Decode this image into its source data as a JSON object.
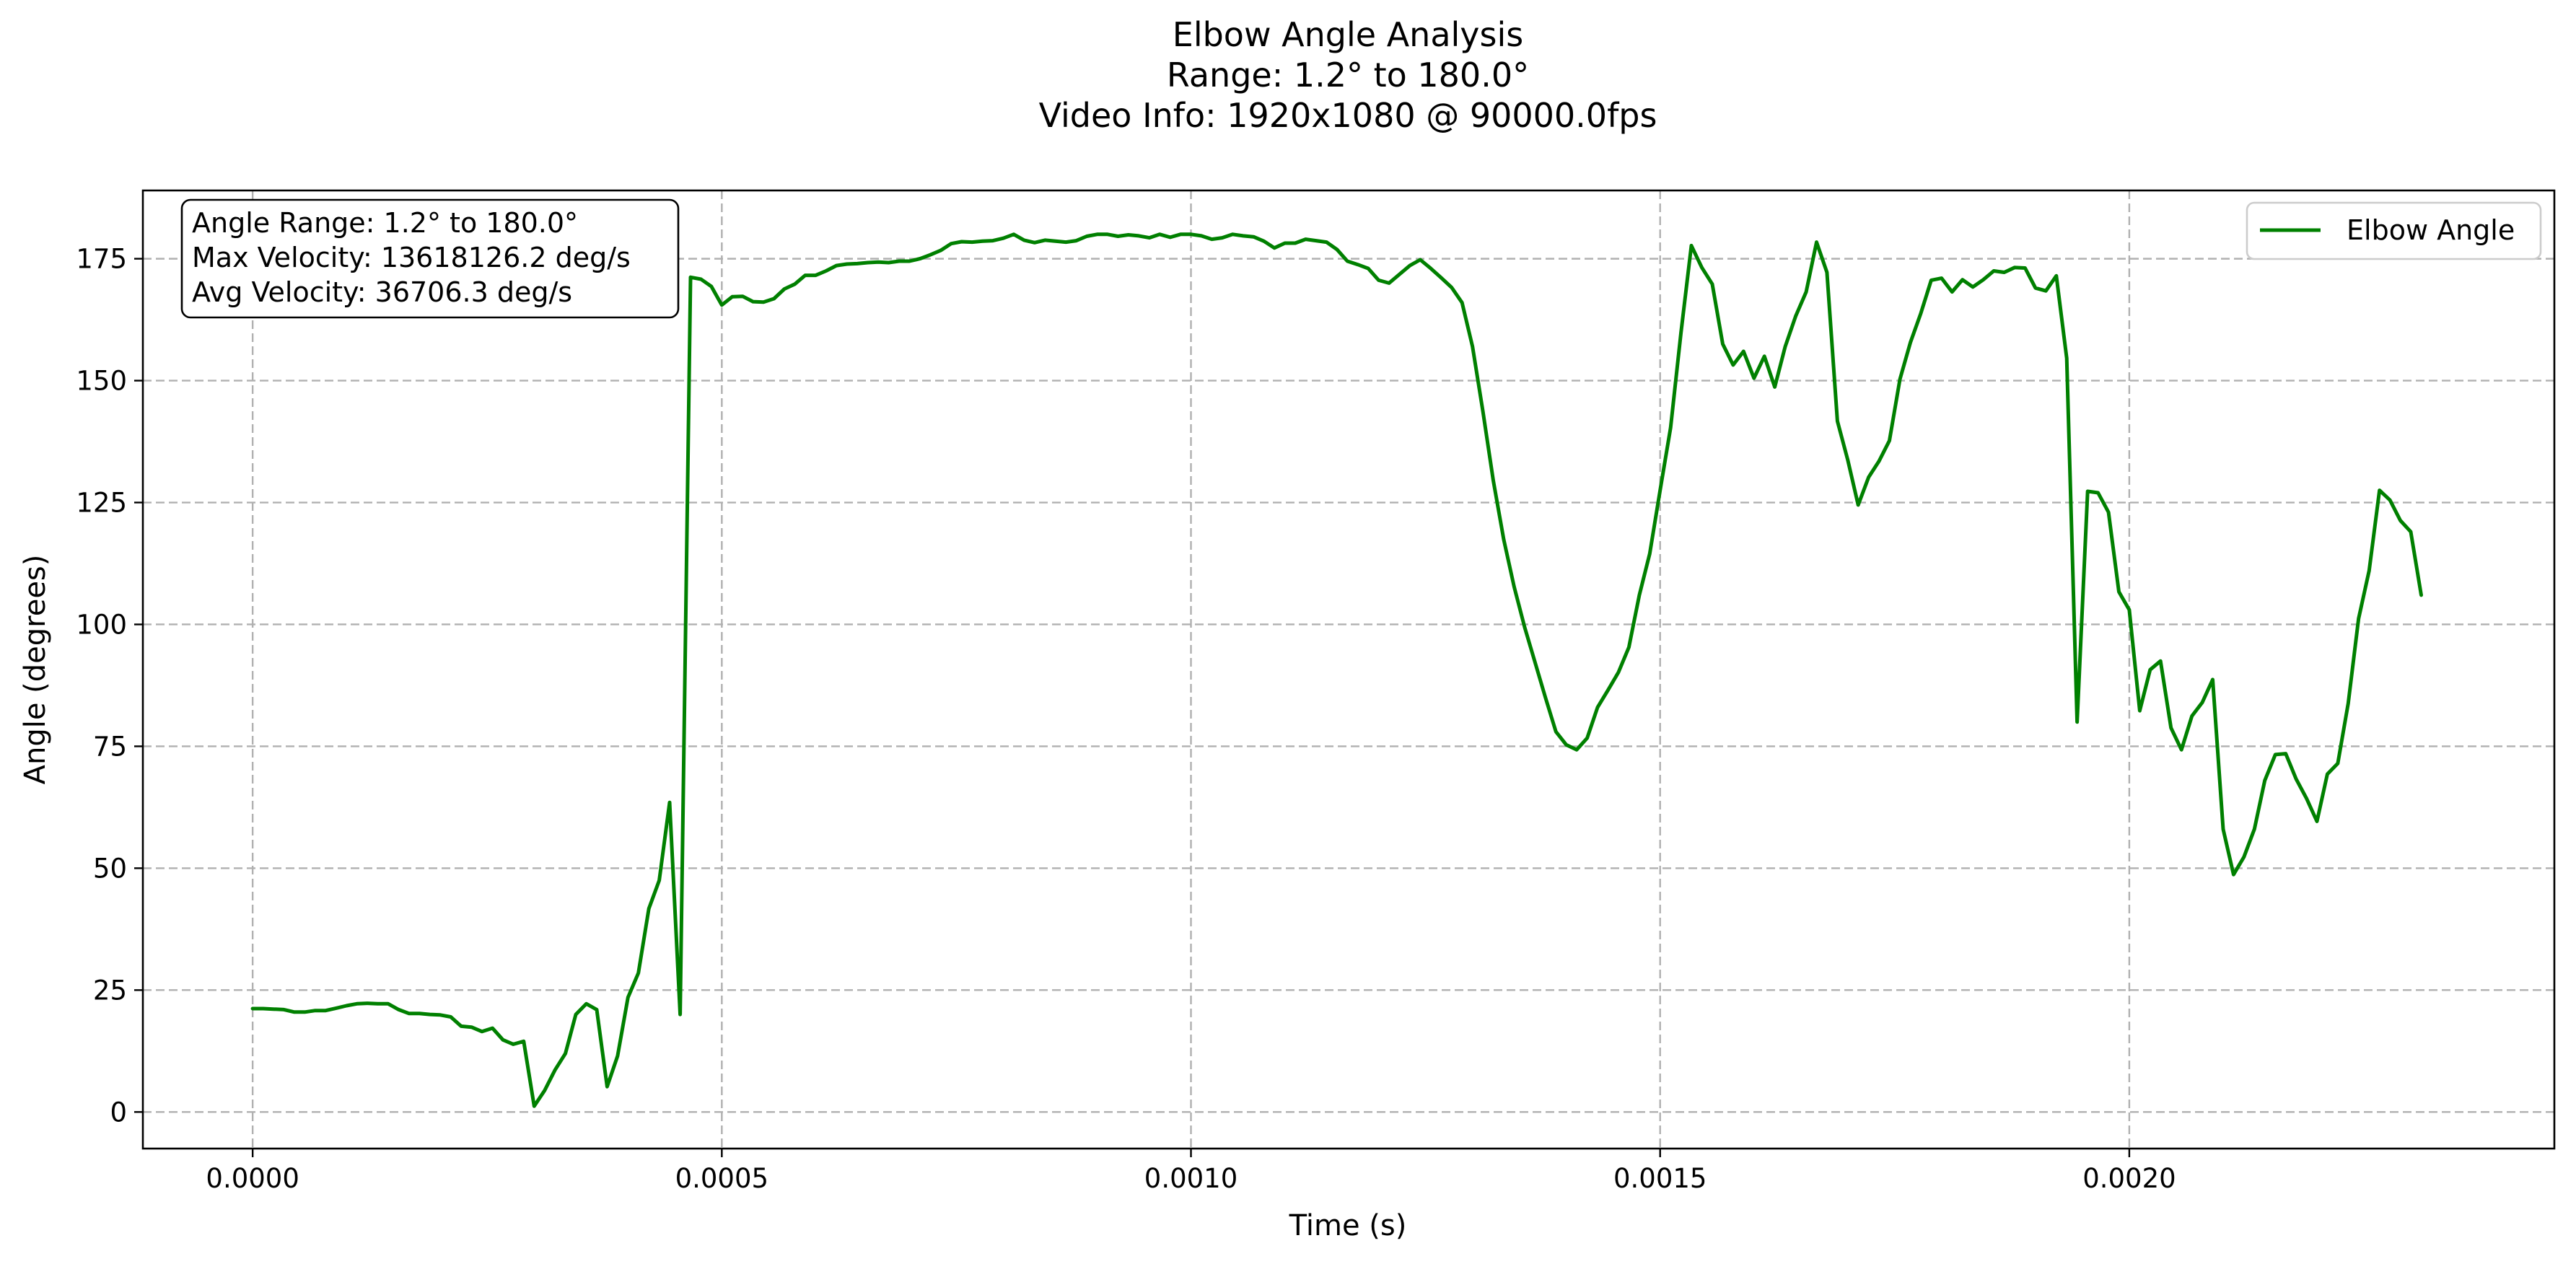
{
  "chart_data": {
    "type": "line",
    "title_lines": [
      "Elbow Angle Analysis",
      "Range: 1.2° to 180.0°",
      "Video Info: 1920x1080 @ 90000.0fps"
    ],
    "xlabel": "Time (s)",
    "ylabel": "Angle (degrees)",
    "xlim": [
      -0.000117,
      0.002453
    ],
    "ylim": [
      -7.5,
      189
    ],
    "x_ticks": [
      0.0,
      0.0005,
      0.001,
      0.0015,
      0.002
    ],
    "x_tick_labels": [
      "0.0000",
      "0.0005",
      "0.0010",
      "0.0015",
      "0.0020"
    ],
    "y_ticks": [
      0,
      25,
      50,
      75,
      100,
      125,
      150,
      175
    ],
    "y_tick_labels": [
      "0",
      "25",
      "50",
      "75",
      "100",
      "125",
      "150",
      "175"
    ],
    "grid": true,
    "legend_position": "top-right",
    "stats_box": {
      "position": "top-left",
      "lines": [
        "Angle Range: 1.2° to 180.0°",
        "Max Velocity: 13618126.2 deg/s",
        "Avg Velocity: 36706.3 deg/s"
      ]
    },
    "series": [
      {
        "name": "Elbow Angle",
        "color": "#008000",
        "points": [
          [
            0.0,
            21.2
          ],
          [
            1.11e-05,
            21.2
          ],
          [
            2.22e-05,
            21.1
          ],
          [
            3.33e-05,
            21.0
          ],
          [
            4.44e-05,
            20.5
          ],
          [
            5.56e-05,
            20.5
          ],
          [
            6.67e-05,
            20.8
          ],
          [
            7.78e-05,
            20.8
          ],
          [
            8.89e-05,
            21.3
          ],
          [
            0.0001,
            21.8
          ],
          [
            0.0001111,
            22.2
          ],
          [
            0.0001222,
            22.3
          ],
          [
            0.0001333,
            22.2
          ],
          [
            0.0001444,
            22.2
          ],
          [
            0.0001556,
            21.0
          ],
          [
            0.0001667,
            20.2
          ],
          [
            0.0001778,
            20.2
          ],
          [
            0.0001889,
            20.0
          ],
          [
            0.0002,
            19.9
          ],
          [
            0.0002111,
            19.5
          ],
          [
            0.0002222,
            17.6
          ],
          [
            0.0002333,
            17.4
          ],
          [
            0.0002444,
            16.5
          ],
          [
            0.0002556,
            17.2
          ],
          [
            0.0002667,
            14.8
          ],
          [
            0.0002778,
            13.9
          ],
          [
            0.0002889,
            14.5
          ],
          [
            0.0003,
            1.2
          ],
          [
            0.0003111,
            4.4
          ],
          [
            0.0003222,
            8.6
          ],
          [
            0.0003333,
            12.0
          ],
          [
            0.0003444,
            20.0
          ],
          [
            0.0003556,
            22.2
          ],
          [
            0.0003667,
            21.0
          ],
          [
            0.0003778,
            5.2
          ],
          [
            0.0003889,
            11.5
          ],
          [
            0.0004,
            23.5
          ],
          [
            0.0004111,
            28.5
          ],
          [
            0.0004222,
            41.7
          ],
          [
            0.0004333,
            47.5
          ],
          [
            0.0004444,
            63.5
          ],
          [
            0.0004556,
            20.0
          ],
          [
            0.0004667,
            171.2
          ],
          [
            0.0004778,
            170.8
          ],
          [
            0.0004889,
            169.3
          ],
          [
            0.0005,
            165.5
          ],
          [
            0.0005111,
            167.2
          ],
          [
            0.0005222,
            167.3
          ],
          [
            0.0005333,
            166.2
          ],
          [
            0.0005444,
            166.1
          ],
          [
            0.0005556,
            166.8
          ],
          [
            0.0005667,
            168.8
          ],
          [
            0.0005778,
            169.8
          ],
          [
            0.0005889,
            171.6
          ],
          [
            0.0006,
            171.6
          ],
          [
            0.0006111,
            172.5
          ],
          [
            0.0006222,
            173.6
          ],
          [
            0.0006333,
            173.9
          ],
          [
            0.0006444,
            174.0
          ],
          [
            0.0006556,
            174.2
          ],
          [
            0.0006667,
            174.3
          ],
          [
            0.0006778,
            174.2
          ],
          [
            0.0006889,
            174.5
          ],
          [
            0.0007,
            174.5
          ],
          [
            0.0007111,
            175.0
          ],
          [
            0.0007222,
            175.8
          ],
          [
            0.0007333,
            176.7
          ],
          [
            0.0007444,
            178.1
          ],
          [
            0.0007556,
            178.5
          ],
          [
            0.0007667,
            178.4
          ],
          [
            0.0007778,
            178.6
          ],
          [
            0.0007889,
            178.7
          ],
          [
            0.0008,
            179.2
          ],
          [
            0.0008111,
            180.0
          ],
          [
            0.0008222,
            178.8
          ],
          [
            0.0008333,
            178.3
          ],
          [
            0.0008444,
            178.8
          ],
          [
            0.0008556,
            178.6
          ],
          [
            0.0008667,
            178.4
          ],
          [
            0.0008778,
            178.7
          ],
          [
            0.0008889,
            179.6
          ],
          [
            0.0009,
            180.0
          ],
          [
            0.0009111,
            180.0
          ],
          [
            0.0009222,
            179.6
          ],
          [
            0.0009333,
            179.9
          ],
          [
            0.0009444,
            179.7
          ],
          [
            0.0009556,
            179.3
          ],
          [
            0.0009667,
            180.0
          ],
          [
            0.0009778,
            179.4
          ],
          [
            0.0009889,
            180.0
          ],
          [
            0.001,
            180.0
          ],
          [
            0.0010111,
            179.7
          ],
          [
            0.0010222,
            179.0
          ],
          [
            0.0010333,
            179.3
          ],
          [
            0.0010444,
            180.0
          ],
          [
            0.0010556,
            179.7
          ],
          [
            0.0010667,
            179.5
          ],
          [
            0.0010778,
            178.6
          ],
          [
            0.0010889,
            177.2
          ],
          [
            0.0011,
            178.2
          ],
          [
            0.0011111,
            178.2
          ],
          [
            0.0011222,
            179.0
          ],
          [
            0.0011333,
            178.7
          ],
          [
            0.0011444,
            178.4
          ],
          [
            0.0011556,
            176.9
          ],
          [
            0.0011667,
            174.5
          ],
          [
            0.0011778,
            173.8
          ],
          [
            0.0011889,
            173.0
          ],
          [
            0.0012,
            170.6
          ],
          [
            0.0012111,
            170.0
          ],
          [
            0.0012222,
            171.8
          ],
          [
            0.0012333,
            173.6
          ],
          [
            0.0012444,
            174.8
          ],
          [
            0.0012556,
            173.0
          ],
          [
            0.0012667,
            171.1
          ],
          [
            0.0012778,
            169.1
          ],
          [
            0.0012889,
            166.0
          ],
          [
            0.0013,
            157.0
          ],
          [
            0.0013111,
            143.7
          ],
          [
            0.0013222,
            129.5
          ],
          [
            0.0013333,
            117.4
          ],
          [
            0.0013444,
            107.7
          ],
          [
            0.0013556,
            99.4
          ],
          [
            0.0013667,
            92.2
          ],
          [
            0.0013778,
            85.0
          ],
          [
            0.0013889,
            78.0
          ],
          [
            0.0014,
            75.3
          ],
          [
            0.0014111,
            74.3
          ],
          [
            0.0014222,
            76.7
          ],
          [
            0.0014333,
            83.0
          ],
          [
            0.0014444,
            86.5
          ],
          [
            0.0014556,
            90.2
          ],
          [
            0.0014667,
            95.3
          ],
          [
            0.0014778,
            106.0
          ],
          [
            0.0014889,
            114.5
          ],
          [
            0.0015,
            127.5
          ],
          [
            0.0015111,
            140.3
          ],
          [
            0.0015222,
            159.8
          ],
          [
            0.0015333,
            177.7
          ],
          [
            0.0015444,
            173.2
          ],
          [
            0.0015556,
            169.8
          ],
          [
            0.0015667,
            157.5
          ],
          [
            0.0015778,
            153.2
          ],
          [
            0.0015889,
            156.0
          ],
          [
            0.0016,
            150.5
          ],
          [
            0.0016111,
            155.0
          ],
          [
            0.0016222,
            148.7
          ],
          [
            0.0016333,
            157.0
          ],
          [
            0.0016444,
            163.2
          ],
          [
            0.0016556,
            168.2
          ],
          [
            0.0016667,
            178.4
          ],
          [
            0.0016778,
            172.2
          ],
          [
            0.0016889,
            141.7
          ],
          [
            0.0017,
            133.7
          ],
          [
            0.0017111,
            124.5
          ],
          [
            0.0017222,
            130.2
          ],
          [
            0.0017333,
            133.5
          ],
          [
            0.0017444,
            137.7
          ],
          [
            0.0017556,
            150.3
          ],
          [
            0.0017667,
            157.8
          ],
          [
            0.0017778,
            163.8
          ],
          [
            0.0017889,
            170.6
          ],
          [
            0.0018,
            171.0
          ],
          [
            0.0018111,
            168.2
          ],
          [
            0.0018222,
            170.7
          ],
          [
            0.0018333,
            169.2
          ],
          [
            0.0018444,
            170.7
          ],
          [
            0.0018556,
            172.5
          ],
          [
            0.0018667,
            172.2
          ],
          [
            0.0018778,
            173.2
          ],
          [
            0.0018889,
            173.1
          ],
          [
            0.0019,
            169.0
          ],
          [
            0.0019111,
            168.4
          ],
          [
            0.0019222,
            171.5
          ],
          [
            0.0019333,
            154.6
          ],
          [
            0.0019444,
            80.0
          ],
          [
            0.0019556,
            127.3
          ],
          [
            0.0019667,
            127.0
          ],
          [
            0.0019778,
            123.0
          ],
          [
            0.0019889,
            106.7
          ],
          [
            0.002,
            103.0
          ],
          [
            0.0020111,
            82.3
          ],
          [
            0.0020222,
            90.7
          ],
          [
            0.0020333,
            92.5
          ],
          [
            0.0020444,
            78.8
          ],
          [
            0.0020556,
            74.3
          ],
          [
            0.0020667,
            81.2
          ],
          [
            0.0020778,
            84.0
          ],
          [
            0.0020889,
            88.7
          ],
          [
            0.0021,
            58.0
          ],
          [
            0.0021111,
            48.7
          ],
          [
            0.0021222,
            52.3
          ],
          [
            0.0021333,
            58.0
          ],
          [
            0.0021444,
            68.0
          ],
          [
            0.0021556,
            73.3
          ],
          [
            0.0021667,
            73.5
          ],
          [
            0.0021778,
            68.3
          ],
          [
            0.0021889,
            64.3
          ],
          [
            0.0022,
            59.6
          ],
          [
            0.0022111,
            69.3
          ],
          [
            0.0022222,
            71.5
          ],
          [
            0.0022333,
            83.8
          ],
          [
            0.0022444,
            101.2
          ],
          [
            0.0022556,
            111.0
          ],
          [
            0.0022667,
            127.5
          ],
          [
            0.0022778,
            125.5
          ],
          [
            0.0022889,
            121.3
          ],
          [
            0.0023,
            119.0
          ],
          [
            0.0023111,
            106.0
          ]
        ]
      }
    ]
  }
}
